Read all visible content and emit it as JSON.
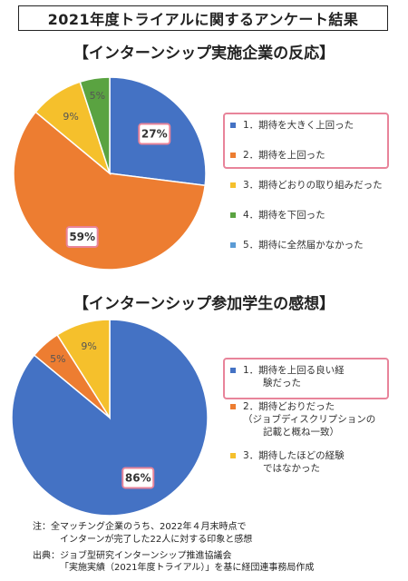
{
  "header": {
    "title": "2021年度トライアルに関するアンケート結果"
  },
  "note": {
    "line1": "注：全マッチング企業のうち、2022年４月末時点で",
    "line2": "インターンが完了した22人に対する印象と感想"
  },
  "source": {
    "line1": "出典：ジョブ型研究インターンシップ推進協議会",
    "line2": "「実施実績（2021年度トライアル）」を基に経団連事務局作成"
  },
  "chart_data": [
    {
      "type": "pie",
      "title": "【インターンシップ実施企業の反応】",
      "labels": [
        "1．期待を大きく上回った",
        "2．期待を上回った",
        "3．期待どおりの取り組みだった",
        "4．期待を下回った",
        "5．期待に全然届かなかった"
      ],
      "values": [
        27,
        59,
        9,
        5,
        0
      ],
      "value_labels": [
        "27%",
        "59%",
        "9%",
        "5%",
        ""
      ],
      "colors": [
        "#4472c4",
        "#ed7d31",
        "#f5c02c",
        "#5aa341",
        "#5b9bd5"
      ],
      "highlighted": [
        0,
        1
      ],
      "legend_position": "right"
    },
    {
      "type": "pie",
      "title": "【インターンシップ参加学生の感想】",
      "labels": [
        "1．期待を上回る良い経験だった",
        "2．期待どおりだった（ジョブディスクリプションの記載と概ね一致）",
        "3．期待したほどの経験ではなかった"
      ],
      "legend_lines": [
        [
          "1．期待を上回る良い経",
          "験だった"
        ],
        [
          "2．期待どおりだった",
          "（ジョブディスクリプションの",
          "記載と概ね一致）"
        ],
        [
          "3．期待したほどの経験",
          "ではなかった"
        ]
      ],
      "values": [
        86,
        5,
        9
      ],
      "value_labels": [
        "86%",
        "5%",
        "9%"
      ],
      "colors": [
        "#4472c4",
        "#ed7d31",
        "#f5c02c"
      ],
      "highlighted": [
        0
      ],
      "legend_position": "right"
    }
  ]
}
